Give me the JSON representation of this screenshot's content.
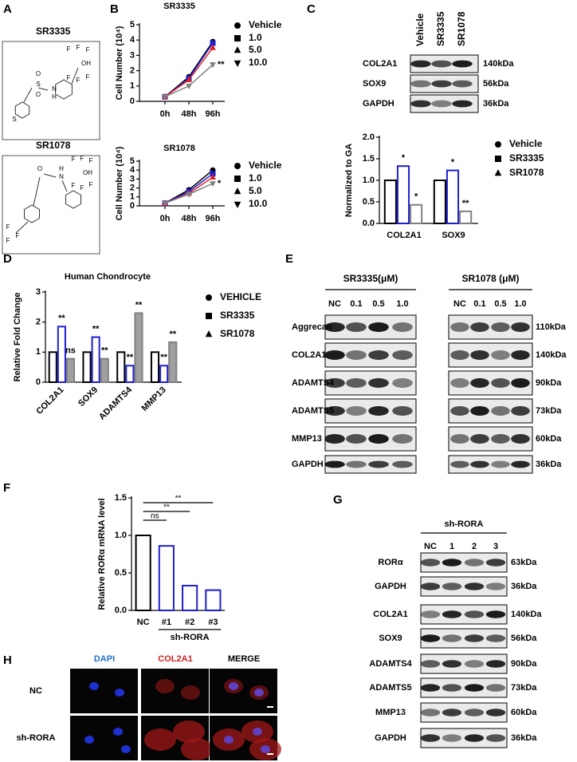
{
  "panels": [
    "A",
    "B",
    "C",
    "D",
    "E",
    "F",
    "G",
    "H"
  ],
  "structures": [
    {
      "name": "SR3335",
      "atoms": [
        "F",
        "F",
        "F",
        "OH",
        "F",
        "F",
        "F",
        "O",
        "S",
        "O",
        "N",
        "H",
        "S"
      ]
    },
    {
      "name": "SR1078",
      "atoms": [
        "O",
        "H",
        "N",
        "F",
        "F",
        "F",
        "OH",
        "F",
        "F",
        "F",
        "F",
        "F",
        "F"
      ]
    }
  ],
  "chart_data": [
    {
      "type": "line",
      "title": "SR3335",
      "y_label": "Cell Number (10⁴)",
      "categories": [
        "0h",
        "48h",
        "96h"
      ],
      "ylim": [
        0,
        5
      ],
      "yticks": [
        0,
        1,
        2,
        3,
        4,
        5
      ],
      "series": [
        {
          "name": "Vehicle",
          "color": "#000000",
          "marker": "circle",
          "values": [
            0.3,
            1.6,
            3.9
          ]
        },
        {
          "name": "1.0",
          "color": "#1f1fd0",
          "marker": "square",
          "values": [
            0.3,
            1.5,
            3.8
          ]
        },
        {
          "name": "5.0",
          "color": "#e02020",
          "marker": "triangle",
          "values": [
            0.3,
            1.4,
            3.5
          ]
        },
        {
          "name": "10.0",
          "color": "#808080",
          "marker": "triangle-down",
          "values": [
            0.3,
            1.0,
            2.4
          ]
        }
      ],
      "annotations": [
        "**"
      ]
    },
    {
      "type": "line",
      "title": "SR1078",
      "y_label": "Cell Number (10⁴)",
      "categories": [
        "0h",
        "48h",
        "96h"
      ],
      "ylim": [
        0,
        5
      ],
      "yticks": [
        0,
        1,
        2,
        3,
        4,
        5
      ],
      "series": [
        {
          "name": "Vehicle",
          "color": "#000000",
          "marker": "circle",
          "values": [
            0.3,
            1.8,
            4.0
          ]
        },
        {
          "name": "1.0",
          "color": "#1f1fd0",
          "marker": "square",
          "values": [
            0.3,
            1.6,
            3.6
          ]
        },
        {
          "name": "5.0",
          "color": "#e02020",
          "marker": "triangle",
          "values": [
            0.3,
            1.4,
            3.2
          ]
        },
        {
          "name": "10.0",
          "color": "#808080",
          "marker": "triangle-down",
          "values": [
            0.3,
            1.3,
            2.5
          ]
        }
      ],
      "annotations": [
        "*"
      ]
    },
    {
      "type": "bar",
      "y_label": "Normalized to GA",
      "categories": [
        "COL2A1",
        "SOX9"
      ],
      "ylim": [
        0,
        2
      ],
      "yticks": [
        {
          "value": 0,
          "label": "0.0"
        },
        {
          "value": 0.5,
          "label": "0.5"
        },
        {
          "value": 1,
          "label": "1.0"
        },
        {
          "value": 1.5,
          "label": "1.5"
        },
        {
          "value": 2,
          "label": "2.0"
        }
      ],
      "series": [
        {
          "name": "Vehicle",
          "color": "#000000",
          "marker": "circle",
          "values": [
            1.0,
            1.0
          ]
        },
        {
          "name": "SR3335",
          "color": "#1f1fd0",
          "marker": "square",
          "values": [
            1.33,
            1.23
          ]
        },
        {
          "name": "SR1078",
          "color": "#808080",
          "marker": "triangle",
          "values": [
            0.43,
            0.28
          ]
        }
      ],
      "annotations": [
        "*",
        "*",
        "*",
        "**"
      ]
    },
    {
      "type": "bar",
      "title": "Human Chondrocyte",
      "y_label": "Relative Fold Change",
      "categories": [
        "COL2A1",
        "SOX9",
        "ADAMTS4",
        "MMP13"
      ],
      "ylim": [
        0,
        3
      ],
      "yticks": [
        0,
        1,
        2,
        3
      ],
      "series": [
        {
          "name": "VEHICLE",
          "color": "#000000",
          "marker": "circle",
          "values": [
            1.0,
            1.0,
            1.0,
            1.0
          ]
        },
        {
          "name": "SR3335",
          "color": "#1f1fd0",
          "marker": "square",
          "values": [
            1.85,
            1.5,
            0.55,
            0.55
          ]
        },
        {
          "name": "SR1078",
          "color": "#808080",
          "fill": "#a0a0a0",
          "marker": "triangle",
          "values": [
            0.78,
            0.78,
            2.3,
            1.33
          ]
        }
      ],
      "annotations": [
        "**",
        "ns",
        "**",
        "**",
        "**",
        "**",
        "**",
        "**"
      ]
    },
    {
      "type": "bar",
      "y_label": "Relative RORα mRNA level",
      "categories": [
        "NC",
        "#1",
        "#2",
        "#3"
      ],
      "group_label": "sh-RORA",
      "ylim": [
        0,
        1.5
      ],
      "yticks": [
        {
          "value": 0,
          "label": "0.0"
        },
        {
          "value": 0.5,
          "label": "0.5"
        },
        {
          "value": 1,
          "label": "1.0"
        },
        {
          "value": 1.5,
          "label": "1.5"
        }
      ],
      "values": [
        1.0,
        0.86,
        0.33,
        0.27
      ],
      "colors": [
        "#000000",
        "#1f1fd0",
        "#1f1fd0",
        "#1f1fd0"
      ],
      "annotations": [
        "ns",
        "**",
        "**"
      ]
    }
  ],
  "blots": {
    "C": {
      "columns": [
        "Vehicle",
        "SR3335",
        "SR1078"
      ],
      "rows": [
        {
          "protein": "COL2A1",
          "size": "140kDa"
        },
        {
          "protein": "SOX9",
          "size": "56kDa"
        },
        {
          "protein": "GAPDH",
          "size": "36kDa"
        }
      ]
    },
    "E": {
      "groups": [
        {
          "title": "SR3335(μM)",
          "columns": [
            "NC",
            "0.1",
            "0.5",
            "1.0"
          ]
        },
        {
          "title": "SR1078 (μM)",
          "columns": [
            "NC",
            "0.1",
            "0.5",
            "1.0"
          ]
        }
      ],
      "rows": [
        {
          "protein": "Aggrecan",
          "size": "110kDa"
        },
        {
          "protein": "COL2A1",
          "size": "140kDa"
        },
        {
          "protein": "ADAMTS4",
          "size": "90kDa"
        },
        {
          "protein": "ADAMTS5",
          "size": "73kDa"
        },
        {
          "protein": "MMP13",
          "size": "60kDa"
        },
        {
          "protein": "GAPDH",
          "size": "36kDa"
        }
      ]
    },
    "G": {
      "group": "sh-RORA",
      "columns": [
        "NC",
        "1",
        "2",
        "3"
      ],
      "rows": [
        {
          "protein": "RORα",
          "size": "63kDa"
        },
        {
          "protein": "GAPDH",
          "size": "36kDa"
        },
        {
          "protein": "COL2A1",
          "size": "140kDa"
        },
        {
          "protein": "SOX9",
          "size": "56kDa"
        },
        {
          "protein": "ADAMTS4",
          "size": "90kDa"
        },
        {
          "protein": "ADAMTS5",
          "size": "73kDa"
        },
        {
          "protein": "MMP13",
          "size": "60kDa"
        },
        {
          "protein": "GAPDH",
          "size": "36kDa"
        }
      ]
    }
  },
  "microscopy": {
    "columns": [
      "DAPI",
      "COL2A1",
      "MERGE"
    ],
    "rows": [
      "NC",
      "sh-RORA"
    ]
  }
}
